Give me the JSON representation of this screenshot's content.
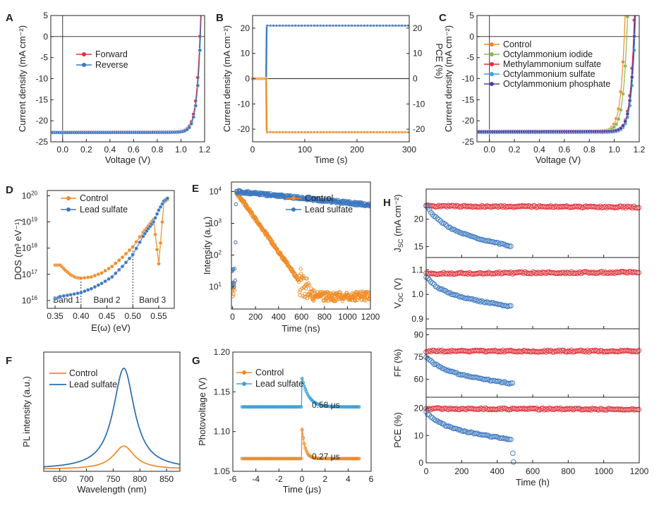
{
  "chart_data": [
    {
      "panel": "A",
      "type": "line",
      "xlabel": "Voltage (V)",
      "ylabel": "Current density (mA cm⁻²)",
      "xlim": [
        -0.1,
        1.2
      ],
      "ylim": [
        -25,
        5
      ],
      "xticks": [
        0.0,
        0.2,
        0.4,
        0.6,
        0.8,
        1.0,
        1.2
      ],
      "xtick_labels": [
        "0.0",
        "0.2",
        "0.4",
        "0.6",
        "0.8",
        "1.0",
        "1.2"
      ],
      "yticks": [
        -25,
        -20,
        -15,
        -10,
        -5,
        0,
        5
      ],
      "ytick_labels": [
        "-25",
        "-20",
        "-15",
        "-10",
        "-5",
        "0",
        "5"
      ],
      "legend": "upper-left",
      "series": [
        {
          "name": "Forward",
          "color": "#e0303a",
          "jsc": -22.7,
          "voc": 1.16
        },
        {
          "name": "Reverse",
          "color": "#3d78c0",
          "jsc": -22.8,
          "voc": 1.165
        }
      ]
    },
    {
      "panel": "B",
      "type": "line",
      "xlabel": "Time (s)",
      "ylabel": "Current density (mA cm⁻²)",
      "y2label": "PCE (%)",
      "xlim": [
        0,
        300
      ],
      "ylim": [
        -25,
        25
      ],
      "xticks": [
        0,
        100,
        200,
        300
      ],
      "xtick_labels": [
        "0",
        "100",
        "200",
        "300"
      ],
      "yticks": [
        -20,
        -10,
        0,
        10,
        20
      ],
      "ytick_labels": [
        "-20",
        "-10",
        "0",
        "10",
        "20"
      ],
      "y2ticks": [
        -20,
        -10,
        0,
        10,
        20
      ],
      "y2tick_labels": [
        "-20",
        "-10",
        "0",
        "10",
        "20"
      ],
      "series": [
        {
          "name": "PCE",
          "color": "#3d78c0",
          "x": [
            0,
            26,
            27,
            300
          ],
          "y": [
            0,
            0,
            21,
            21
          ]
        },
        {
          "name": "Current density",
          "color": "#f08a24",
          "x": [
            0,
            26,
            27,
            300
          ],
          "y": [
            0,
            0,
            -21.2,
            -21.2
          ]
        }
      ]
    },
    {
      "panel": "C",
      "type": "line",
      "xlabel": "Voltage (V)",
      "ylabel": "Current density (mA cm⁻²)",
      "xlim": [
        -0.1,
        1.2
      ],
      "ylim": [
        -25,
        5
      ],
      "xticks": [
        0.0,
        0.2,
        0.4,
        0.6,
        0.8,
        1.0,
        1.2
      ],
      "xtick_labels": [
        "0.0",
        "0.2",
        "0.4",
        "0.6",
        "0.8",
        "1.0",
        "1.2"
      ],
      "yticks": [
        -25,
        -20,
        -15,
        -10,
        -5,
        0,
        5
      ],
      "ytick_labels": [
        "-25",
        "-20",
        "-15",
        "-10",
        "-5",
        "0",
        "5"
      ],
      "legend": "upper-left",
      "series": [
        {
          "name": "Control",
          "color": "#f08a24",
          "jsc": -22.6,
          "voc": 1.08
        },
        {
          "name": "Octylammonium iodide",
          "color": "#8cb84a",
          "jsc": -22.5,
          "voc": 1.1
        },
        {
          "name": "Methylammonium sulfate",
          "color": "#e0303a",
          "jsc": -22.7,
          "voc": 1.155
        },
        {
          "name": "Octylammonium sulfate",
          "color": "#3ea0d8",
          "jsc": -22.8,
          "voc": 1.165
        },
        {
          "name": "Octylammonium phosphate",
          "color": "#5040a0",
          "jsc": -22.6,
          "voc": 1.16
        }
      ]
    },
    {
      "panel": "D",
      "type": "line",
      "yscale": "log",
      "xlabel": "E(ω) (eV)",
      "ylabel": "DOS (m³ eV⁻¹)",
      "xlim": [
        0.335,
        0.58
      ],
      "ylim": [
        15.7,
        20.2
      ],
      "xticks": [
        0.35,
        0.4,
        0.45,
        0.5,
        0.55
      ],
      "xtick_labels": [
        "0.35",
        "0.40",
        "0.45",
        "0.50",
        "0.55"
      ],
      "ytick_exponents": [
        16,
        17,
        18,
        19,
        20
      ],
      "band_dividers": [
        0.4,
        0.5
      ],
      "bands": [
        "Band 1",
        "Band 2",
        "Band 3"
      ],
      "legend": "upper-left",
      "series": [
        {
          "name": "Control",
          "color": "#f08a24",
          "x": [
            0.35,
            0.36,
            0.37,
            0.38,
            0.39,
            0.4,
            0.42,
            0.44,
            0.46,
            0.48,
            0.5,
            0.52,
            0.53,
            0.54,
            0.55,
            0.56,
            0.57
          ],
          "log10y": [
            17.35,
            17.35,
            17.15,
            16.98,
            16.88,
            16.85,
            16.9,
            17.05,
            17.3,
            17.65,
            18.05,
            18.6,
            18.85,
            19.1,
            17.4,
            19.75,
            19.9
          ]
        },
        {
          "name": "Lead sulfate",
          "color": "#3d78c0",
          "x": [
            0.35,
            0.36,
            0.38,
            0.4,
            0.42,
            0.44,
            0.46,
            0.48,
            0.5,
            0.52,
            0.53,
            0.54,
            0.55,
            0.56,
            0.57
          ],
          "log10y": [
            16.05,
            16.15,
            16.22,
            16.3,
            16.45,
            16.65,
            16.9,
            17.3,
            17.75,
            18.45,
            18.75,
            19.0,
            19.45,
            19.8,
            19.95
          ]
        }
      ]
    },
    {
      "panel": "E",
      "type": "scatter",
      "yscale": "log",
      "xlabel": "Time (ns)",
      "ylabel": "Intensity (a.u.)",
      "xlim": [
        -10,
        1200
      ],
      "ylim": [
        0.3,
        4.3
      ],
      "xticks": [
        0,
        200,
        400,
        600,
        800,
        1000,
        1200
      ],
      "xtick_labels": [
        "0",
        "200",
        "400",
        "600",
        "800",
        "1000",
        "1200"
      ],
      "ytick_exponents": [
        1,
        2,
        3,
        4
      ],
      "legend": "upper-right",
      "series": [
        {
          "name": "Control",
          "color": "#f08a24",
          "peak_log10": 4.0,
          "tau_ns": 85,
          "noise_floor_log10": 0.55
        },
        {
          "name": "Lead sulfate",
          "color": "#3d78c0",
          "peak_log10": 4.0,
          "tau_ns": 1200,
          "noise_floor_log10": 0.55
        }
      ]
    },
    {
      "panel": "F",
      "type": "line",
      "xlabel": "Wavelength (nm)",
      "ylabel": "PL intensity (a.u.)",
      "xlim": [
        620,
        875
      ],
      "ylim": [
        0,
        1.18
      ],
      "xticks": [
        650,
        700,
        750,
        800,
        850
      ],
      "xtick_labels": [
        "650",
        "700",
        "750",
        "800",
        "850"
      ],
      "legend": "upper-left",
      "series": [
        {
          "name": "Control",
          "color": "#f08a24",
          "peak_nm": 770,
          "amplitude": 0.23,
          "fwhm_nm": 48
        },
        {
          "name": "Lead sulfate",
          "color": "#2a6cb0",
          "peak_nm": 770,
          "amplitude": 1.0,
          "fwhm_nm": 48
        }
      ]
    },
    {
      "panel": "G",
      "type": "line",
      "xlabel": "Time (μs)",
      "ylabel": "Photovoltage (V)",
      "xlim": [
        -6,
        6
      ],
      "ylim": [
        1.05,
        1.2
      ],
      "xticks": [
        -6,
        -4,
        -2,
        0,
        2,
        4,
        6
      ],
      "xtick_labels": [
        "-6",
        "-4",
        "-2",
        "0",
        "2",
        "4",
        "6"
      ],
      "yticks": [
        1.05,
        1.1,
        1.15,
        1.2
      ],
      "ytick_labels": [
        "1.05",
        "1.10",
        "1.15",
        "1.20"
      ],
      "legend": "upper-left",
      "series": [
        {
          "name": "Control",
          "color": "#f08a24",
          "baseline": 1.066,
          "peak": 1.105,
          "tau_us": 0.27
        },
        {
          "name": "Lead sulfate",
          "color": "#3ea0d8",
          "baseline": 1.131,
          "peak": 1.168,
          "tau_us": 0.58
        }
      ],
      "annotations": [
        "0.58 μs",
        "0.27 μs"
      ]
    },
    {
      "panel": "H",
      "type": "scatter",
      "stacked": true,
      "xlabel": "Time (h)",
      "xlim": [
        0,
        1200
      ],
      "xticks": [
        0,
        200,
        400,
        600,
        800,
        1000,
        1200
      ],
      "xtick_labels": [
        "0",
        "200",
        "400",
        "600",
        "800",
        "1000",
        "1200"
      ],
      "subplots": [
        {
          "ylabel_main": "J",
          "ylabel_sub": "SC",
          "ylabel_unit": " (mA cm⁻²)",
          "ylim": [
            13,
            25.5
          ],
          "yticks": [
            15,
            20
          ],
          "ytick_labels": [
            "15",
            "20"
          ],
          "stable": {
            "color": "#e0303a",
            "start": 22.4,
            "end": 22.2,
            "x_end": 1200
          },
          "degrading": {
            "color": "#3d78c0",
            "start": 22.5,
            "end": 15.0,
            "x_end": 480
          }
        },
        {
          "ylabel_main": "V",
          "ylabel_sub": "OC",
          "ylabel_unit": " (V)",
          "ylim": [
            0.86,
            1.15
          ],
          "yticks": [
            0.9,
            1.0,
            1.1
          ],
          "ytick_labels": [
            "0.9",
            "1.0",
            "1.1"
          ],
          "stable": {
            "color": "#e0303a",
            "start": 1.085,
            "end": 1.09,
            "x_end": 1200
          },
          "degrading": {
            "color": "#3d78c0",
            "start": 1.07,
            "end": 0.95,
            "x_end": 480
          }
        },
        {
          "ylabel_main": "FF",
          "ylabel_sub": "",
          "ylabel_unit": " (%)",
          "ylim": [
            48,
            94
          ],
          "yticks": [
            60,
            75,
            90
          ],
          "ytick_labels": [
            "60",
            "75",
            "90"
          ],
          "stable": {
            "color": "#e0303a",
            "start": 79,
            "end": 79,
            "x_end": 1200
          },
          "degrading": {
            "color": "#3d78c0",
            "start": 75,
            "end": 57,
            "x_end": 490
          }
        },
        {
          "ylabel_main": "PCE",
          "ylabel_sub": "",
          "ylabel_unit": " (%)",
          "ylim": [
            0,
            24
          ],
          "yticks": [
            0,
            10,
            20
          ],
          "ytick_labels": [
            "0",
            "10",
            "20"
          ],
          "stable": {
            "color": "#e0303a",
            "start": 19.8,
            "end": 19.6,
            "x_end": 1200
          },
          "degrading": {
            "color": "#3d78c0",
            "start": 18.5,
            "end": 8.5,
            "x_end": 480
          }
        }
      ]
    }
  ]
}
